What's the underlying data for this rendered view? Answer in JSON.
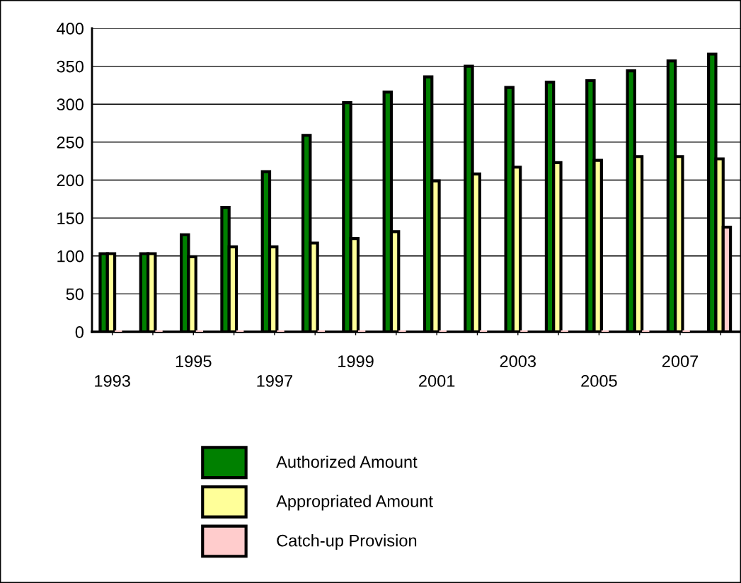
{
  "chart_data": {
    "type": "bar",
    "categories": [
      "1993",
      null,
      "1995",
      null,
      "1997",
      null,
      "1999",
      null,
      "2001",
      null,
      "2003",
      null,
      "2005",
      null,
      "2007",
      null
    ],
    "series": [
      {
        "name": "Authorized Amount",
        "color": "#008000",
        "values": [
          103,
          103,
          128,
          164,
          211,
          259,
          302,
          316,
          336,
          350,
          322,
          329,
          331,
          344,
          357,
          366
        ]
      },
      {
        "name": "Appropriated Amount",
        "color": "#ffff99",
        "values": [
          103,
          103,
          99,
          112,
          112,
          117,
          123,
          132,
          199,
          208,
          217,
          223,
          226,
          231,
          231,
          228
        ]
      },
      {
        "name": "Catch-up Provision",
        "color": "#ffcccc",
        "values": [
          0,
          0,
          0,
          0,
          0,
          0,
          0,
          0,
          0,
          0,
          0,
          0,
          0,
          0,
          0,
          138
        ]
      }
    ],
    "ylim": [
      0,
      400
    ],
    "yticks": [
      0,
      50,
      100,
      150,
      200,
      250,
      300,
      350,
      400
    ],
    "grid": "y",
    "legend": "bottom"
  }
}
